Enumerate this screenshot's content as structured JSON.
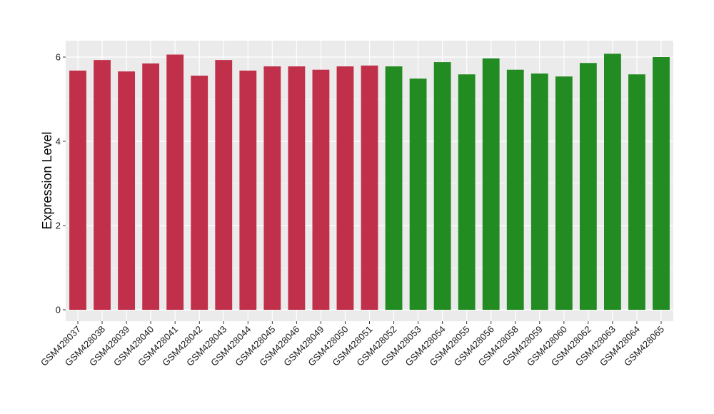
{
  "chart_data": {
    "type": "bar",
    "title": "",
    "xlabel": "",
    "ylabel": "Expression Level",
    "ylim": [
      0,
      6.4
    ],
    "yticks": [
      0,
      2,
      4,
      6
    ],
    "grid": true,
    "legend": "none",
    "categories": [
      "GSM428037",
      "GSM428038",
      "GSM428039",
      "GSM428040",
      "GSM428041",
      "GSM428042",
      "GSM428043",
      "GSM428044",
      "GSM428045",
      "GSM428046",
      "GSM428049",
      "GSM428050",
      "GSM428051",
      "GSM428052",
      "GSM428053",
      "GSM428054",
      "GSM428055",
      "GSM428056",
      "GSM428058",
      "GSM428059",
      "GSM428060",
      "GSM428062",
      "GSM428063",
      "GSM428064",
      "GSM428065"
    ],
    "values": [
      5.68,
      5.93,
      5.66,
      5.85,
      6.06,
      5.56,
      5.93,
      5.68,
      5.78,
      5.78,
      5.7,
      5.78,
      5.8,
      5.78,
      5.49,
      5.88,
      5.59,
      5.97,
      5.7,
      5.61,
      5.54,
      5.86,
      6.08,
      5.59,
      6.0
    ],
    "group_of_bar": [
      0,
      0,
      0,
      0,
      0,
      0,
      0,
      0,
      0,
      0,
      0,
      0,
      0,
      1,
      1,
      1,
      1,
      1,
      1,
      1,
      1,
      1,
      1,
      1,
      1
    ],
    "group_colors": [
      "#C1304A",
      "#228B22"
    ],
    "panel_background": "#EBEBEB",
    "grid_color": "#FFFFFF"
  }
}
